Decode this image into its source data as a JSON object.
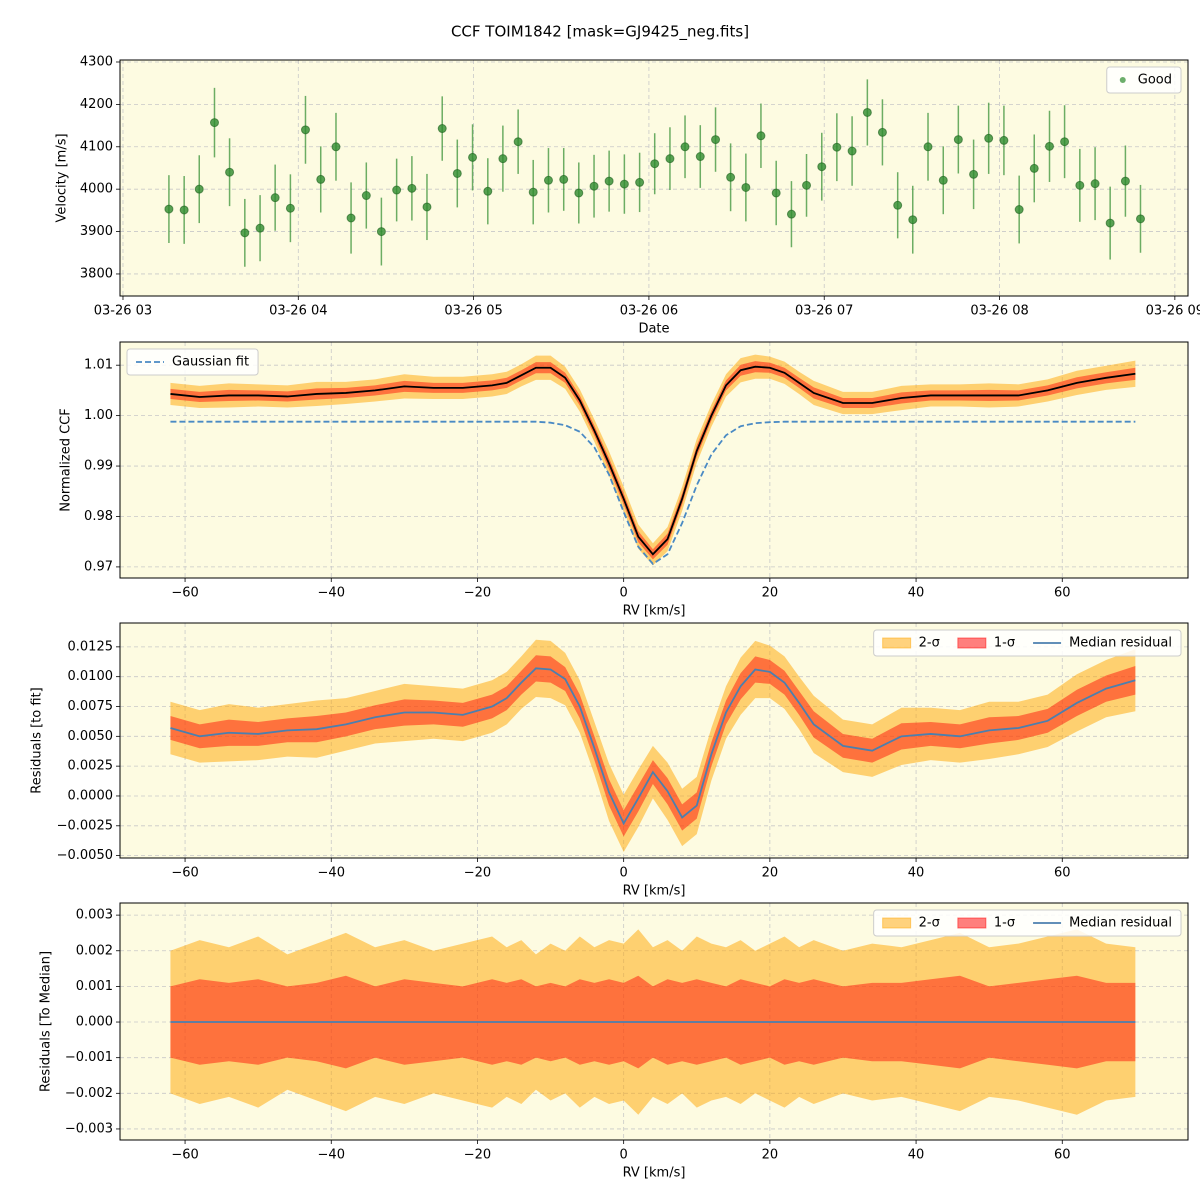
{
  "title": "CCF TOIM1842 [mask=GJ9425_neg.fits]",
  "chart_data": [
    {
      "type": "scatter",
      "xlabel": "Date",
      "ylabel": "Velocity [m/s]",
      "grid": true,
      "legend": "upper right",
      "xlim": [
        2.983,
        9.075
      ],
      "ylim": [
        3748,
        4304.7
      ],
      "xticks": [
        {
          "value": 3,
          "label": "03-26 03"
        },
        {
          "value": 4,
          "label": "03-26 04"
        },
        {
          "value": 5,
          "label": "03-26 05"
        },
        {
          "value": 6,
          "label": "03-26 06"
        },
        {
          "value": 7,
          "label": "03-26 07"
        },
        {
          "value": 8,
          "label": "03-26 08"
        },
        {
          "value": 9,
          "label": "03-26 09"
        }
      ],
      "yticks": [
        3800,
        3900,
        4000,
        4100,
        4200,
        4300
      ],
      "x": [
        3.262,
        3.349,
        3.435,
        3.522,
        3.608,
        3.695,
        3.782,
        3.868,
        3.955,
        4.041,
        4.128,
        4.215,
        4.301,
        4.388,
        4.474,
        4.561,
        4.648,
        4.734,
        4.821,
        4.907,
        4.994,
        5.081,
        5.167,
        5.254,
        5.34,
        5.427,
        5.514,
        5.6,
        5.687,
        5.773,
        5.86,
        5.947,
        6.033,
        6.12,
        6.206,
        6.293,
        6.38,
        6.466,
        6.553,
        6.639,
        6.726,
        6.813,
        6.899,
        6.986,
        7.072,
        7.159,
        7.246,
        7.332,
        7.419,
        7.505,
        7.592,
        7.679,
        7.765,
        7.852,
        7.938,
        8.025,
        8.112,
        8.198,
        8.285,
        8.371,
        8.458,
        8.545,
        8.631,
        8.718,
        8.804
      ],
      "series": [
        {
          "name": "Good",
          "color": "#2e8b2e",
          "values": [
            3953,
            3951,
            4000,
            4157,
            4040,
            3897,
            3908,
            3980,
            3955,
            4140,
            4023,
            4100,
            3932,
            3985,
            3900,
            3998,
            4002,
            3958,
            4143,
            4037,
            4075,
            3995,
            4072,
            4112,
            3993,
            4021,
            4023,
            3991,
            4007,
            4019,
            4012,
            4016,
            4060,
            4072,
            4100,
            4077,
            4117,
            4028,
            4004,
            4126,
            3991,
            3941,
            4009,
            4053,
            4099,
            4090,
            4181,
            4134,
            3962,
            3928,
            4100,
            4021,
            4117,
            4035,
            4120,
            4115,
            3952,
            4049,
            4101,
            4112,
            4009,
            4013,
            3920,
            4019,
            3930
          ],
          "errors": [
            80,
            80,
            80,
            82,
            80,
            80,
            78,
            78,
            80,
            80,
            78,
            80,
            84,
            78,
            80,
            74,
            76,
            78,
            76,
            80,
            78,
            78,
            78,
            76,
            76,
            76,
            74,
            72,
            74,
            72,
            70,
            70,
            72,
            74,
            74,
            74,
            76,
            80,
            80,
            76,
            76,
            78,
            74,
            80,
            80,
            82,
            78,
            78,
            78,
            80,
            80,
            80,
            80,
            82,
            84,
            82,
            80,
            80,
            84,
            86,
            86,
            86,
            86,
            84,
            80
          ]
        }
      ]
    },
    {
      "type": "line",
      "xlabel": "RV [km/s]",
      "ylabel": "Normalized CCF",
      "grid": true,
      "legend": "upper left",
      "xlim": [
        -68.9,
        77.2
      ],
      "ylim": [
        0.9678,
        1.0146
      ],
      "xticks": [
        {
          "value": -60,
          "label": "−60"
        },
        {
          "value": -40,
          "label": "−40"
        },
        {
          "value": -20,
          "label": "−20"
        },
        0,
        20,
        40,
        60
      ],
      "yticks": [
        0.97,
        0.98,
        0.99,
        {
          "value": 1,
          "label": "1.00"
        },
        1.01
      ],
      "x": [
        -62,
        -58,
        -54,
        -50,
        -46,
        -42,
        -38,
        -34,
        -30,
        -26,
        -22,
        -18,
        -16,
        -14,
        -12,
        -10,
        -8,
        -6,
        -4,
        -2,
        0,
        2,
        4,
        6,
        8,
        10,
        12,
        14,
        16,
        18,
        20,
        22,
        24,
        26,
        30,
        34,
        38,
        42,
        46,
        50,
        54,
        58,
        62,
        66,
        70
      ],
      "ccf": {
        "color": "#000000",
        "values": [
          1.0043,
          1.0037,
          1.004,
          1.004,
          1.0038,
          1.0043,
          1.0045,
          1.005,
          1.0058,
          1.0055,
          1.0055,
          1.006,
          1.0065,
          1.008,
          1.0095,
          1.0095,
          1.0075,
          1.003,
          0.997,
          0.9905,
          0.9835,
          0.976,
          0.9725,
          0.9755,
          0.9835,
          0.993,
          1.0,
          1.006,
          1.009,
          1.0097,
          1.0095,
          1.0085,
          1.0065,
          1.0045,
          1.0025,
          1.0025,
          1.0035,
          1.004,
          1.004,
          1.004,
          1.004,
          1.005,
          1.0065,
          1.0075,
          1.0083
        ],
        "bands": [
          {
            "color": "#ffa500",
            "errors": [
              0.0022,
              0.0022,
              0.0024,
              0.0022,
              0.0022,
              0.0024,
              0.0022,
              0.0022,
              0.0024,
              0.0022,
              0.0022,
              0.0022,
              0.0022,
              0.0022,
              0.0024,
              0.0024,
              0.0022,
              0.0022,
              0.0022,
              0.0024,
              0.0024,
              0.0024,
              0.0022,
              0.0024,
              0.0024,
              0.0024,
              0.0022,
              0.0022,
              0.0024,
              0.0024,
              0.0022,
              0.0022,
              0.0022,
              0.0024,
              0.0022,
              0.0022,
              0.0024,
              0.0022,
              0.0022,
              0.0024,
              0.0022,
              0.0022,
              0.0024,
              0.0024,
              0.0026
            ]
          },
          {
            "color": "#ff0000",
            "errors": [
              0.001,
              0.001,
              0.0011,
              0.001,
              0.001,
              0.0011,
              0.001,
              0.001,
              0.0011,
              0.001,
              0.001,
              0.001,
              0.001,
              0.001,
              0.0011,
              0.0011,
              0.001,
              0.001,
              0.001,
              0.0011,
              0.0011,
              0.0011,
              0.001,
              0.0011,
              0.0011,
              0.0011,
              0.001,
              0.001,
              0.0011,
              0.0011,
              0.001,
              0.001,
              0.001,
              0.0011,
              0.001,
              0.001,
              0.0011,
              0.001,
              0.001,
              0.0011,
              0.001,
              0.001,
              0.0011,
              0.0011,
              0.0012
            ]
          }
        ]
      },
      "series": [
        {
          "name": "Gaussian fit",
          "color": "#4a8ac4",
          "dashed": true,
          "values": [
            0.9988,
            0.9988,
            0.9988,
            0.9988,
            0.9988,
            0.9988,
            0.9988,
            0.9988,
            0.9988,
            0.9988,
            0.9988,
            0.9988,
            0.9988,
            0.9988,
            0.9988,
            0.9986,
            0.9981,
            0.9968,
            0.9937,
            0.9883,
            0.9809,
            0.974,
            0.9706,
            0.9725,
            0.9787,
            0.9862,
            0.9923,
            0.9961,
            0.9979,
            0.9985,
            0.9987,
            0.9988,
            0.9988,
            0.9988,
            0.9988,
            0.9988,
            0.9988,
            0.9988,
            0.9988,
            0.9988,
            0.9988,
            0.9988,
            0.9988,
            0.9988,
            0.9988
          ]
        }
      ]
    },
    {
      "type": "line",
      "xlabel": "RV [km/s]",
      "ylabel": "Residuals [to fit]",
      "grid": true,
      "legend": "upper right",
      "xlim": [
        -68.9,
        77.2
      ],
      "ylim": [
        -0.0052,
        0.0145
      ],
      "xticks": [
        {
          "value": -60,
          "label": "−60"
        },
        {
          "value": -40,
          "label": "−40"
        },
        {
          "value": -20,
          "label": "−20"
        },
        0,
        20,
        40,
        60
      ],
      "yticks": [
        {
          "value": -0.005,
          "label": "−0.0050"
        },
        {
          "value": -0.0025,
          "label": "−0.0025"
        },
        {
          "value": 0,
          "label": "0.0000"
        },
        0.0025,
        {
          "value": 0.005,
          "label": "0.0050"
        },
        0.0075,
        {
          "value": 0.01,
          "label": "0.0100"
        },
        0.0125
      ],
      "x": [
        -62,
        -58,
        -54,
        -50,
        -46,
        -42,
        -38,
        -34,
        -30,
        -26,
        -22,
        -18,
        -16,
        -14,
        -12,
        -10,
        -8,
        -6,
        -4,
        -2,
        0,
        2,
        4,
        6,
        8,
        10,
        12,
        14,
        16,
        18,
        20,
        22,
        24,
        26,
        30,
        34,
        38,
        42,
        46,
        50,
        54,
        58,
        62,
        66,
        70
      ],
      "series": [
        {
          "name": "2-σ",
          "color": "#ffa500",
          "errors": [
            0.0022,
            0.0022,
            0.0024,
            0.0022,
            0.0022,
            0.0024,
            0.0022,
            0.0022,
            0.0024,
            0.0022,
            0.0022,
            0.0022,
            0.0022,
            0.0022,
            0.0024,
            0.0024,
            0.0022,
            0.0022,
            0.0022,
            0.0024,
            0.0024,
            0.0024,
            0.0022,
            0.0024,
            0.0024,
            0.0024,
            0.0022,
            0.0022,
            0.0024,
            0.0024,
            0.0022,
            0.0022,
            0.0022,
            0.0024,
            0.0022,
            0.0022,
            0.0024,
            0.0022,
            0.0022,
            0.0024,
            0.0022,
            0.0022,
            0.0024,
            0.0024,
            0.0026
          ]
        },
        {
          "name": "1-σ",
          "color": "#ff0000",
          "errors": [
            0.001,
            0.001,
            0.0011,
            0.001,
            0.001,
            0.0011,
            0.001,
            0.001,
            0.0011,
            0.001,
            0.001,
            0.001,
            0.001,
            0.001,
            0.0011,
            0.0011,
            0.001,
            0.001,
            0.001,
            0.0011,
            0.0011,
            0.0011,
            0.001,
            0.0011,
            0.0011,
            0.0011,
            0.001,
            0.001,
            0.0011,
            0.0011,
            0.001,
            0.001,
            0.001,
            0.0011,
            0.001,
            0.001,
            0.0011,
            0.001,
            0.001,
            0.0011,
            0.001,
            0.001,
            0.0011,
            0.0011,
            0.0012
          ]
        },
        {
          "name": "Median residual",
          "color": "#4c7fae",
          "values": [
            0.0057,
            0.005,
            0.0053,
            0.0052,
            0.0055,
            0.0056,
            0.006,
            0.0066,
            0.007,
            0.007,
            0.0068,
            0.0075,
            0.0082,
            0.0095,
            0.0107,
            0.0106,
            0.0098,
            0.0075,
            0.004,
            0.0003,
            -0.0023,
            -0.0002,
            0.002,
            0.0004,
            -0.0018,
            -0.0008,
            0.0035,
            0.007,
            0.0092,
            0.0106,
            0.0104,
            0.0095,
            0.0078,
            0.006,
            0.0042,
            0.0038,
            0.005,
            0.0052,
            0.005,
            0.0055,
            0.0057,
            0.0063,
            0.0078,
            0.009,
            0.0097
          ]
        }
      ]
    },
    {
      "type": "line",
      "xlabel": "RV [km/s]",
      "ylabel": "Residuals [To Median]",
      "grid": true,
      "legend": "upper right",
      "xlim": [
        -68.9,
        77.2
      ],
      "ylim": [
        -0.00331,
        0.00334
      ],
      "xticks": [
        {
          "value": -60,
          "label": "−60"
        },
        {
          "value": -40,
          "label": "−40"
        },
        {
          "value": -20,
          "label": "−20"
        },
        0,
        20,
        40,
        60
      ],
      "yticks": [
        {
          "value": -0.003,
          "label": "−0.003"
        },
        {
          "value": -0.002,
          "label": "−0.002"
        },
        {
          "value": -0.001,
          "label": "−0.001"
        },
        {
          "value": 0,
          "label": "0.000"
        },
        0.001,
        0.002,
        0.003
      ],
      "x": [
        -62,
        -58,
        -54,
        -50,
        -46,
        -42,
        -38,
        -34,
        -30,
        -26,
        -22,
        -18,
        -16,
        -14,
        -12,
        -10,
        -8,
        -6,
        -4,
        -2,
        0,
        2,
        4,
        6,
        8,
        10,
        12,
        14,
        16,
        18,
        20,
        22,
        24,
        26,
        30,
        34,
        38,
        42,
        46,
        50,
        54,
        58,
        62,
        66,
        70
      ],
      "series": [
        {
          "name": "2-σ",
          "color": "#ffa500",
          "errors": [
            0.002,
            0.0023,
            0.0021,
            0.0024,
            0.0019,
            0.0022,
            0.0025,
            0.0021,
            0.0023,
            0.002,
            0.0022,
            0.0024,
            0.0021,
            0.0023,
            0.0019,
            0.0022,
            0.002,
            0.0024,
            0.0021,
            0.0023,
            0.0022,
            0.0026,
            0.0021,
            0.0023,
            0.002,
            0.0024,
            0.0022,
            0.0021,
            0.0023,
            0.002,
            0.0022,
            0.0024,
            0.0021,
            0.0023,
            0.002,
            0.0022,
            0.0021,
            0.0023,
            0.0025,
            0.0021,
            0.0022,
            0.0024,
            0.0026,
            0.0022,
            0.0021
          ]
        },
        {
          "name": "1-σ",
          "color": "#ff0000",
          "errors": [
            0.001,
            0.0012,
            0.0011,
            0.0012,
            0.001,
            0.0011,
            0.0013,
            0.001,
            0.0012,
            0.0011,
            0.001,
            0.0012,
            0.0011,
            0.0012,
            0.001,
            0.0011,
            0.001,
            0.0012,
            0.0011,
            0.0012,
            0.0011,
            0.0013,
            0.001,
            0.0012,
            0.0011,
            0.0012,
            0.0011,
            0.001,
            0.0012,
            0.0011,
            0.001,
            0.0012,
            0.0011,
            0.0012,
            0.001,
            0.0011,
            0.0011,
            0.0012,
            0.0013,
            0.001,
            0.0011,
            0.0012,
            0.0013,
            0.0011,
            0.0011
          ]
        },
        {
          "name": "Median residual",
          "color": "#4c7fae",
          "values": [
            0,
            0,
            0,
            0,
            0,
            0,
            0,
            0,
            0,
            0,
            0,
            0,
            0,
            0,
            0,
            0,
            0,
            0,
            0,
            0,
            0,
            0,
            0,
            0,
            0,
            0,
            0,
            0,
            0,
            0,
            0,
            0,
            0,
            0,
            0,
            0,
            0,
            0,
            0,
            0,
            0,
            0,
            0,
            0,
            0
          ]
        }
      ]
    }
  ]
}
